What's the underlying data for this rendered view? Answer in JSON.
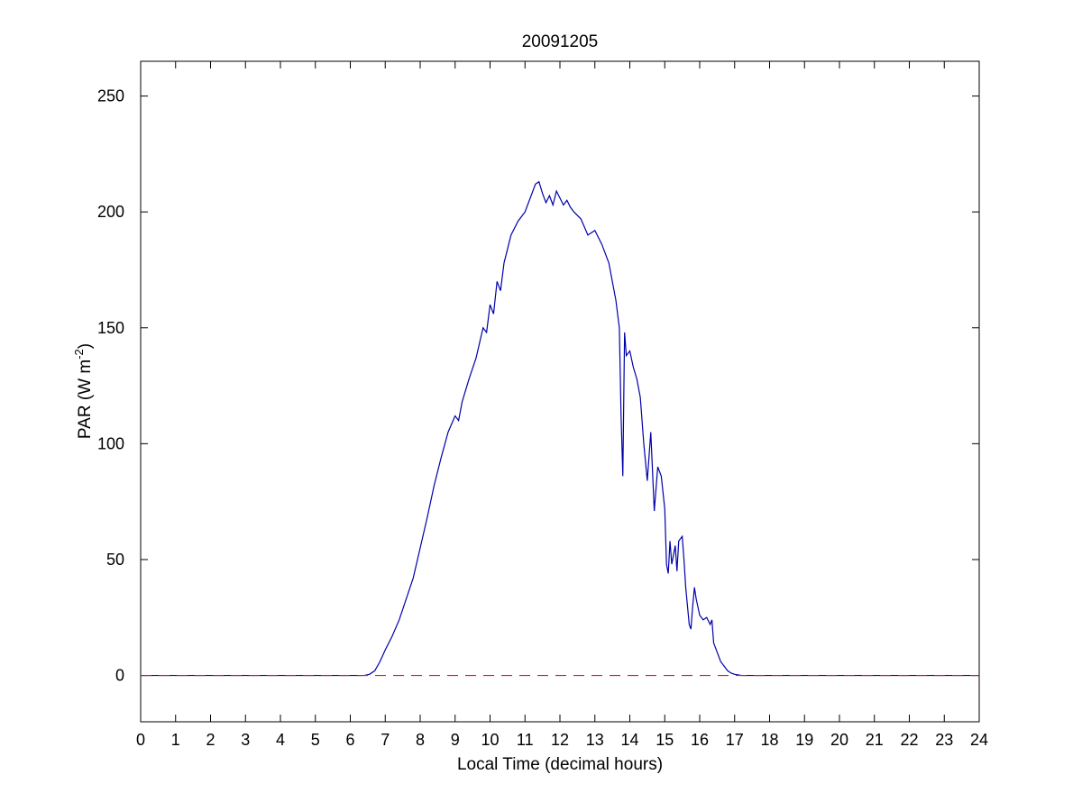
{
  "chart_data": {
    "type": "line",
    "title": "20091205",
    "xlabel": "Local Time (decimal hours)",
    "ylabel": {
      "prefix": "PAR (W m",
      "superscript": "-2",
      "suffix": ")"
    },
    "xlim": [
      0,
      24
    ],
    "ylim": [
      -20,
      265
    ],
    "xticks": [
      0,
      1,
      2,
      3,
      4,
      5,
      6,
      7,
      8,
      9,
      10,
      11,
      12,
      13,
      14,
      15,
      16,
      17,
      18,
      19,
      20,
      21,
      22,
      23,
      24
    ],
    "yticks": [
      0,
      50,
      100,
      150,
      200,
      250
    ],
    "grid": false,
    "series": [
      {
        "style": "solid",
        "color": "#0000aa",
        "points": [
          [
            0,
            0
          ],
          [
            6.4,
            0
          ],
          [
            6.55,
            0.5
          ],
          [
            6.7,
            2
          ],
          [
            6.85,
            6
          ],
          [
            7.0,
            11
          ],
          [
            7.2,
            17
          ],
          [
            7.4,
            24
          ],
          [
            7.6,
            33
          ],
          [
            7.8,
            42
          ],
          [
            8.0,
            55
          ],
          [
            8.2,
            68
          ],
          [
            8.4,
            82
          ],
          [
            8.6,
            94
          ],
          [
            8.8,
            105
          ],
          [
            9.0,
            112
          ],
          [
            9.1,
            110
          ],
          [
            9.2,
            118
          ],
          [
            9.4,
            128
          ],
          [
            9.6,
            137
          ],
          [
            9.8,
            150
          ],
          [
            9.9,
            148
          ],
          [
            10.0,
            160
          ],
          [
            10.1,
            156
          ],
          [
            10.2,
            170
          ],
          [
            10.3,
            166
          ],
          [
            10.4,
            178
          ],
          [
            10.5,
            184
          ],
          [
            10.6,
            190
          ],
          [
            10.8,
            196
          ],
          [
            11.0,
            200
          ],
          [
            11.1,
            204
          ],
          [
            11.2,
            208
          ],
          [
            11.3,
            212
          ],
          [
            11.4,
            213
          ],
          [
            11.5,
            208
          ],
          [
            11.6,
            204
          ],
          [
            11.7,
            207
          ],
          [
            11.8,
            203
          ],
          [
            11.9,
            209
          ],
          [
            12.0,
            206
          ],
          [
            12.1,
            203
          ],
          [
            12.2,
            205
          ],
          [
            12.3,
            202
          ],
          [
            12.4,
            200
          ],
          [
            12.6,
            197
          ],
          [
            12.8,
            190
          ],
          [
            13.0,
            192
          ],
          [
            13.2,
            186
          ],
          [
            13.4,
            178
          ],
          [
            13.6,
            162
          ],
          [
            13.7,
            150
          ],
          [
            13.75,
            112
          ],
          [
            13.8,
            86
          ],
          [
            13.85,
            148
          ],
          [
            13.9,
            138
          ],
          [
            14.0,
            140
          ],
          [
            14.1,
            133
          ],
          [
            14.2,
            128
          ],
          [
            14.3,
            120
          ],
          [
            14.4,
            100
          ],
          [
            14.5,
            84
          ],
          [
            14.6,
            105
          ],
          [
            14.7,
            71
          ],
          [
            14.8,
            90
          ],
          [
            14.9,
            86
          ],
          [
            15.0,
            72
          ],
          [
            15.05,
            48
          ],
          [
            15.1,
            44
          ],
          [
            15.15,
            58
          ],
          [
            15.2,
            48
          ],
          [
            15.3,
            56
          ],
          [
            15.35,
            45
          ],
          [
            15.4,
            58
          ],
          [
            15.5,
            60
          ],
          [
            15.55,
            50
          ],
          [
            15.6,
            38
          ],
          [
            15.7,
            22
          ],
          [
            15.75,
            20
          ],
          [
            15.8,
            30
          ],
          [
            15.85,
            38
          ],
          [
            15.9,
            33
          ],
          [
            16.0,
            26
          ],
          [
            16.1,
            24
          ],
          [
            16.2,
            25
          ],
          [
            16.3,
            22
          ],
          [
            16.35,
            24
          ],
          [
            16.4,
            14
          ],
          [
            16.5,
            10
          ],
          [
            16.6,
            6
          ],
          [
            16.7,
            4
          ],
          [
            16.8,
            2
          ],
          [
            16.9,
            1
          ],
          [
            17.0,
            0.5
          ],
          [
            17.2,
            0
          ],
          [
            24,
            0
          ]
        ]
      },
      {
        "style": "dashed",
        "color": "#ff0000",
        "points": [
          [
            0,
            0
          ],
          [
            24,
            0
          ]
        ]
      }
    ]
  }
}
